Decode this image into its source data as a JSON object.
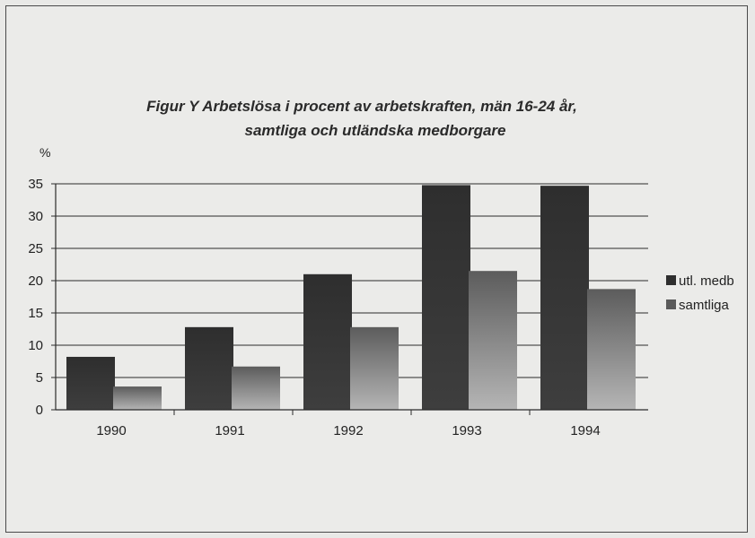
{
  "chart_data": {
    "type": "bar",
    "title": "Figur  Y Arbetslösa i procent av arbetskraften, män 16-24 år,",
    "subtitle": "samtliga och utländska medborgare",
    "ylabel": "%",
    "xlabel": "",
    "ylim": [
      0,
      35
    ],
    "yticks": [
      "0",
      "5",
      "10",
      "15",
      "20",
      "25",
      "30",
      "35"
    ],
    "grid": true,
    "legend_position": "right",
    "categories": [
      "1990",
      "1991",
      "1992",
      "1993",
      "1994"
    ],
    "series": [
      {
        "name": "utl. medb",
        "values": [
          8.2,
          12.8,
          21.0,
          34.8,
          34.7
        ],
        "color": "#333333"
      },
      {
        "name": "samtliga",
        "values": [
          3.6,
          6.7,
          12.8,
          21.5,
          18.7
        ],
        "color": "#7a7a7a"
      }
    ]
  }
}
